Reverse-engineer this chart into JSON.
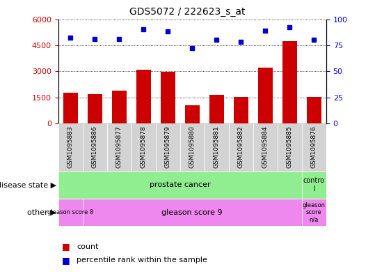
{
  "title": "GDS5072 / 222623_s_at",
  "samples": [
    "GSM1095883",
    "GSM1095886",
    "GSM1095877",
    "GSM1095878",
    "GSM1095879",
    "GSM1095880",
    "GSM1095881",
    "GSM1095882",
    "GSM1095884",
    "GSM1095885",
    "GSM1095876"
  ],
  "counts": [
    1750,
    1680,
    1900,
    3100,
    2950,
    1050,
    1630,
    1530,
    3200,
    4750,
    1530
  ],
  "percentiles": [
    82,
    81,
    81,
    90,
    88,
    72,
    80,
    78,
    89,
    92,
    80
  ],
  "left_ylim": [
    0,
    6000
  ],
  "right_ylim": [
    0,
    100
  ],
  "left_yticks": [
    0,
    1500,
    3000,
    4500,
    6000
  ],
  "right_yticks": [
    0,
    25,
    50,
    75,
    100
  ],
  "bar_color": "#cc0000",
  "dot_color": "#0000cc",
  "prostate_color": "#90ee90",
  "gleason_color": "#ee88ee",
  "legend_count_label": "count",
  "legend_percentile_label": "percentile rank within the sample",
  "disease_state_label": "disease state",
  "other_label": "other"
}
